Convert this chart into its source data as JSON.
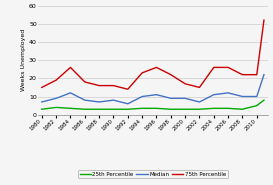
{
  "years": [
    1980,
    1982,
    1984,
    1986,
    1988,
    1990,
    1992,
    1994,
    1996,
    1998,
    2000,
    2002,
    2004,
    2006,
    2008,
    2010,
    2011
  ],
  "p25_vals": [
    3,
    4,
    3.5,
    3,
    3,
    3,
    3,
    3.5,
    3.5,
    3,
    3,
    3,
    3.5,
    3.5,
    3,
    5,
    8
  ],
  "median_vals": [
    7,
    9,
    12,
    8,
    7,
    8,
    6,
    10,
    11,
    9,
    9,
    7,
    11,
    12,
    10,
    10,
    22
  ],
  "p75_vals": [
    15,
    19,
    26,
    18,
    16,
    16,
    14,
    23,
    26,
    22,
    17,
    15,
    26,
    26,
    22,
    22,
    52
  ],
  "color_p25": "#00aa00",
  "color_median": "#4472c4",
  "color_p75": "#cc0000",
  "ylabel": "Weeks Unemployed",
  "ylim": [
    0,
    60
  ],
  "yticks": [
    0,
    10,
    20,
    30,
    40,
    50,
    60
  ],
  "xtick_years": [
    1980,
    1982,
    1984,
    1986,
    1988,
    1990,
    1992,
    1994,
    1996,
    1998,
    2000,
    2002,
    2004,
    2006,
    2008,
    2010
  ],
  "legend_labels": [
    "25th Percentile",
    "Median",
    "75th Percentile"
  ],
  "bg_color": "#f5f5f5",
  "grid_color": "#cccccc",
  "linewidth": 1.0
}
